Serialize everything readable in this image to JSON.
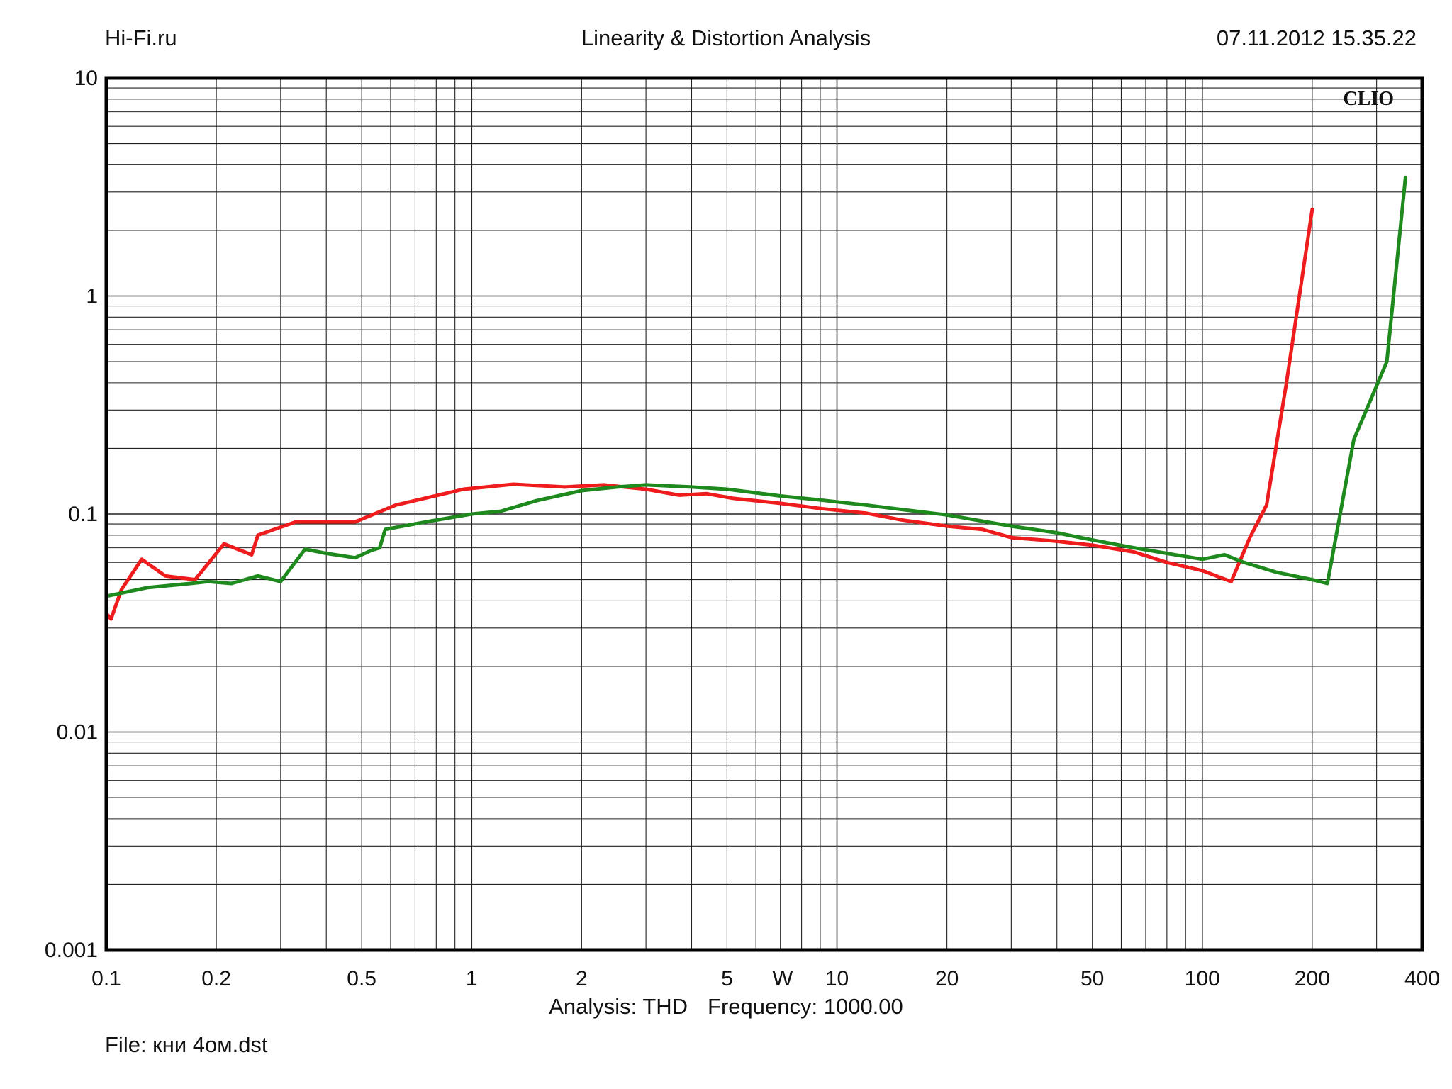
{
  "header": {
    "left": "Hi-Fi.ru",
    "title": "Linearity & Distortion Analysis",
    "datetime": "07.11.2012 15.35.22"
  },
  "brand": "CLIO",
  "footer": {
    "analysis": "Analysis: THD",
    "frequency": "Frequency: 1000.00",
    "file": "File: кни 4ом.dst"
  },
  "chart_data": {
    "type": "line",
    "xscale": "log",
    "yscale": "log",
    "xlim": [
      0.1,
      400
    ],
    "ylim": [
      0.001,
      10
    ],
    "xlabel": "W",
    "ylabel": "",
    "grid": true,
    "x_ticks": [
      {
        "value": 0.1,
        "label": "0.1"
      },
      {
        "value": 0.2,
        "label": "0.2"
      },
      {
        "value": 0.5,
        "label": "0.5"
      },
      {
        "value": 1,
        "label": "1"
      },
      {
        "value": 2,
        "label": "2"
      },
      {
        "value": 5,
        "label": "5"
      },
      {
        "value": 10,
        "label": "10"
      },
      {
        "value": 20,
        "label": "20"
      },
      {
        "value": 50,
        "label": "50"
      },
      {
        "value": 100,
        "label": "100"
      },
      {
        "value": 200,
        "label": "200"
      },
      {
        "value": 400,
        "label": "400"
      }
    ],
    "y_ticks": [
      {
        "value": 10,
        "label": "10"
      },
      {
        "value": 1,
        "label": "1"
      },
      {
        "value": 0.1,
        "label": "0.1"
      },
      {
        "value": 0.01,
        "label": "0.01"
      },
      {
        "value": 0.001,
        "label": "0.001"
      }
    ],
    "series": [
      {
        "color": "#ee1c1c",
        "points": [
          [
            0.1,
            0.035
          ],
          [
            0.103,
            0.033
          ],
          [
            0.11,
            0.045
          ],
          [
            0.125,
            0.062
          ],
          [
            0.145,
            0.052
          ],
          [
            0.175,
            0.05
          ],
          [
            0.21,
            0.073
          ],
          [
            0.25,
            0.065
          ],
          [
            0.26,
            0.08
          ],
          [
            0.33,
            0.092
          ],
          [
            0.48,
            0.092
          ],
          [
            0.62,
            0.11
          ],
          [
            0.95,
            0.13
          ],
          [
            1.3,
            0.137
          ],
          [
            1.8,
            0.133
          ],
          [
            2.3,
            0.136
          ],
          [
            3.0,
            0.13
          ],
          [
            3.7,
            0.122
          ],
          [
            4.4,
            0.124
          ],
          [
            5.2,
            0.118
          ],
          [
            7.0,
            0.112
          ],
          [
            9.0,
            0.106
          ],
          [
            12.0,
            0.101
          ],
          [
            15.0,
            0.094
          ],
          [
            20.0,
            0.088
          ],
          [
            25.0,
            0.085
          ],
          [
            30.0,
            0.078
          ],
          [
            40.0,
            0.075
          ],
          [
            50.0,
            0.072
          ],
          [
            65.0,
            0.067
          ],
          [
            80.0,
            0.06
          ],
          [
            100.0,
            0.055
          ],
          [
            120.0,
            0.049
          ],
          [
            135.0,
            0.078
          ],
          [
            150.0,
            0.11
          ],
          [
            170.0,
            0.4
          ],
          [
            200.0,
            2.5
          ]
        ]
      },
      {
        "color": "#1e8a1e",
        "points": [
          [
            0.1,
            0.042
          ],
          [
            0.13,
            0.046
          ],
          [
            0.17,
            0.048
          ],
          [
            0.19,
            0.049
          ],
          [
            0.22,
            0.048
          ],
          [
            0.26,
            0.052
          ],
          [
            0.3,
            0.049
          ],
          [
            0.35,
            0.069
          ],
          [
            0.4,
            0.066
          ],
          [
            0.48,
            0.063
          ],
          [
            0.53,
            0.068
          ],
          [
            0.56,
            0.07
          ],
          [
            0.58,
            0.085
          ],
          [
            0.75,
            0.092
          ],
          [
            1.0,
            0.1
          ],
          [
            1.2,
            0.103
          ],
          [
            1.5,
            0.115
          ],
          [
            2.0,
            0.128
          ],
          [
            2.5,
            0.133
          ],
          [
            3.0,
            0.136
          ],
          [
            4.0,
            0.133
          ],
          [
            5.0,
            0.13
          ],
          [
            7.0,
            0.121
          ],
          [
            9.0,
            0.116
          ],
          [
            12.0,
            0.11
          ],
          [
            15.0,
            0.105
          ],
          [
            20.0,
            0.099
          ],
          [
            30.0,
            0.088
          ],
          [
            40.0,
            0.082
          ],
          [
            50.0,
            0.076
          ],
          [
            65.0,
            0.07
          ],
          [
            80.0,
            0.066
          ],
          [
            100.0,
            0.062
          ],
          [
            115.0,
            0.065
          ],
          [
            130.0,
            0.06
          ],
          [
            160.0,
            0.054
          ],
          [
            200.0,
            0.05
          ],
          [
            220.0,
            0.048
          ],
          [
            260.0,
            0.22
          ],
          [
            320.0,
            0.5
          ],
          [
            360.0,
            3.5
          ]
        ]
      }
    ]
  }
}
